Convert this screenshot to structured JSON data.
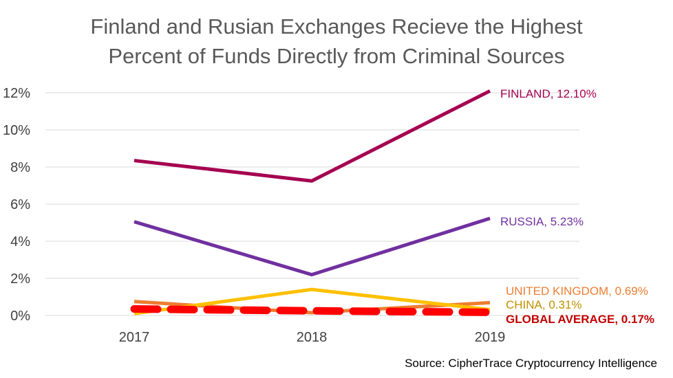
{
  "chart_data": {
    "type": "line",
    "title_lines": [
      "Finland and Rusian Exchanges Recieve the Highest",
      "Percent of Funds Directly from Criminal Sources"
    ],
    "x": [
      "2017",
      "2018",
      "2019"
    ],
    "y_ticks": [
      "0%",
      "2%",
      "4%",
      "6%",
      "8%",
      "10%",
      "12%"
    ],
    "ylim": [
      0,
      12
    ],
    "grid": true,
    "series": [
      {
        "key": "finland",
        "values": [
          8.35,
          7.25,
          12.1
        ],
        "color": "#A50050",
        "end_label": "FINLAND, 12.10%",
        "style": "solid"
      },
      {
        "key": "russia",
        "values": [
          5.05,
          2.2,
          5.23
        ],
        "color": "#7030A0",
        "end_label": "RUSSIA, 5.23%",
        "style": "solid"
      },
      {
        "key": "united-kingdom",
        "values": [
          0.75,
          0.15,
          0.69
        ],
        "color": "#ED7D31",
        "end_label": "UNITED KINGDOM, 0.69%",
        "style": "solid"
      },
      {
        "key": "china",
        "values": [
          0.1,
          1.4,
          0.31
        ],
        "color": "#FFC000",
        "end_label": "CHINA, 0.31%",
        "style": "solid"
      },
      {
        "key": "global-average",
        "values": [
          0.35,
          0.25,
          0.17
        ],
        "color": "#FF0000",
        "end_label": "GLOBAL AVERAGE, 0.17%",
        "style": "dashed"
      }
    ],
    "label_colors": {
      "finland": "#A50050",
      "russia": "#7030A0",
      "united-kingdom": "#ED7D31",
      "china": "#BF9000",
      "global-average": "#C00000"
    }
  },
  "source": "Source: CipherTrace Cryptocurrency Intelligence"
}
